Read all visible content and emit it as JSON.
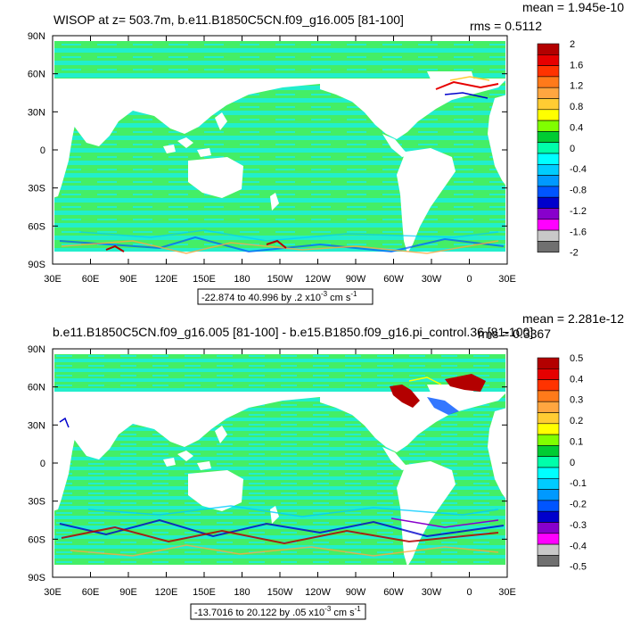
{
  "chart_data": [
    {
      "type": "heatmap",
      "title": "WISOP at z= 503.7m, b.e11.B1850C5CN.f09_g16.005 [81-100]",
      "mean_text": "mean = 1.945e-10",
      "rms_text": "rms = 0.5112",
      "x_ticks": [
        "30E",
        "60E",
        "90E",
        "120E",
        "150E",
        "180",
        "150W",
        "120W",
        "90W",
        "60W",
        "30W",
        "0",
        "30E"
      ],
      "y_ticks": [
        "90N",
        "60N",
        "30N",
        "0",
        "30S",
        "60S",
        "90S"
      ],
      "xlim": [
        30,
        390
      ],
      "ylim": [
        -90,
        90
      ],
      "range_note": {
        "prefix": "-22.874 to 40.996 by .2 x10",
        "exp": "-3",
        "suffix": " cm s",
        "unit_exp": "-1"
      },
      "colorbar_labels": [
        "2",
        "1.6",
        "1.2",
        "0.8",
        "0.4",
        "0",
        "-0.4",
        "-0.8",
        "-1.2",
        "-1.6",
        "-2"
      ],
      "colorbar_colors": [
        "#b30000",
        "#e60000",
        "#ff3300",
        "#ff7a1a",
        "#ffa640",
        "#ffcc33",
        "#ffff00",
        "#80ff00",
        "#00cc33",
        "#00ffaa",
        "#00ffff",
        "#00ccff",
        "#0099ff",
        "#0055ff",
        "#0000cc",
        "#8800cc",
        "#ff00ff",
        "#c8c8c8",
        "#707070"
      ]
    },
    {
      "type": "heatmap",
      "title": "b.e11.B1850C5CN.f09_g16.005 [81-100] - b.e15.B1850.f09_g16.pi_control.36 [81-100]",
      "mean_text": "mean = 2.281e-12",
      "rms_text": "rms = 0.3367",
      "x_ticks": [
        "30E",
        "60E",
        "90E",
        "120E",
        "150E",
        "180",
        "150W",
        "120W",
        "90W",
        "60W",
        "30W",
        "0",
        "30E"
      ],
      "y_ticks": [
        "90N",
        "60N",
        "30N",
        "0",
        "30S",
        "60S",
        "90S"
      ],
      "xlim": [
        30,
        390
      ],
      "ylim": [
        -90,
        90
      ],
      "range_note": {
        "prefix": "-13.7016 to 20.122 by .05 x10",
        "exp": "-3",
        "suffix": " cm s",
        "unit_exp": "-1"
      },
      "colorbar_labels": [
        "0.5",
        "0.4",
        "0.3",
        "0.2",
        "0.1",
        "0",
        "-0.1",
        "-0.2",
        "-0.3",
        "-0.4",
        "-0.5"
      ],
      "colorbar_colors": [
        "#b30000",
        "#e60000",
        "#ff3300",
        "#ff7a1a",
        "#ffa640",
        "#ffcc33",
        "#ffff00",
        "#80ff00",
        "#00cc33",
        "#00ffaa",
        "#00ffff",
        "#00ccff",
        "#0099ff",
        "#0055ff",
        "#0000cc",
        "#8800cc",
        "#ff00ff",
        "#c8c8c8",
        "#707070"
      ]
    }
  ],
  "colors": {
    "ocean_primary": "#44ee66",
    "ocean_secondary": "#22eecc",
    "land": "#ffffff"
  }
}
